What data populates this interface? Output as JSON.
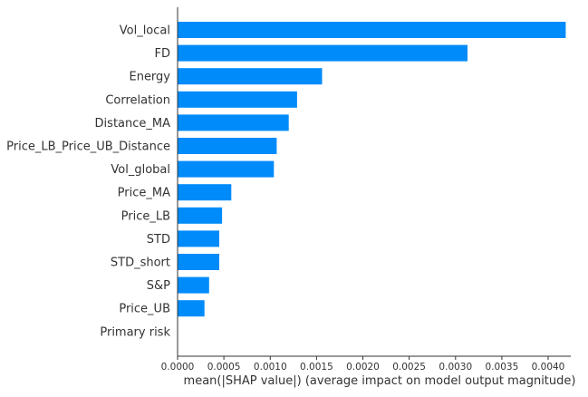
{
  "chart_data": {
    "type": "bar",
    "orientation": "horizontal",
    "categories": [
      "Vol_local",
      "FD",
      "Energy",
      "Correlation",
      "Distance_MA",
      "Price_LB_Price_UB_Distance",
      "Vol_global",
      "Price_MA",
      "Price_LB",
      "STD",
      "STD_short",
      "S&P",
      "Price_UB",
      "Primary risk"
    ],
    "values": [
      0.00419,
      0.00313,
      0.00156,
      0.00129,
      0.0012,
      0.00107,
      0.00104,
      0.00058,
      0.00048,
      0.00045,
      0.00045,
      0.00034,
      0.00029,
      0.0
    ],
    "xlabel": "mean(|SHAP value|) (average impact on model output magnitude)",
    "ylabel": "",
    "xlim": [
      0.0,
      0.0043
    ],
    "xticks": [
      "0.0000",
      "0.0005",
      "0.0010",
      "0.0015",
      "0.0020",
      "0.0025",
      "0.0030",
      "0.0035",
      "0.0040"
    ],
    "bar_color": "#008bfb",
    "grid": false,
    "legend": "none"
  }
}
